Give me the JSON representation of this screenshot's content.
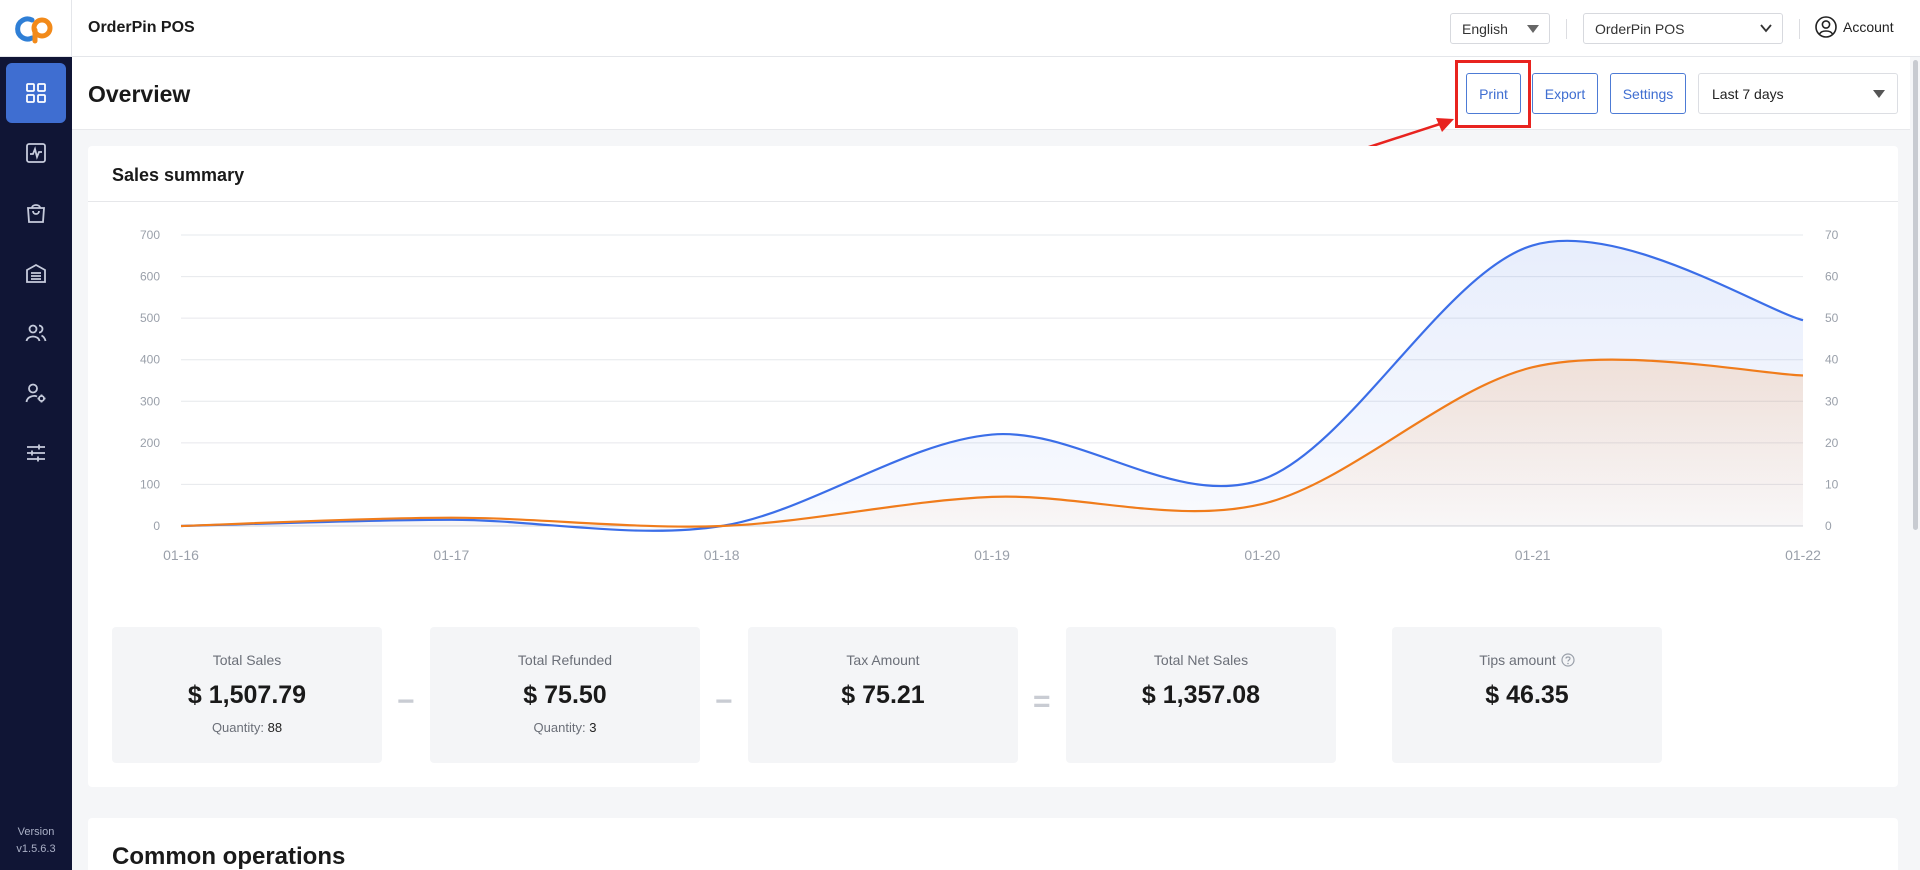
{
  "app": {
    "name": "OrderPin POS"
  },
  "topbar": {
    "language": "English",
    "store": "OrderPin POS",
    "account_label": "Account"
  },
  "sidebar": {
    "items": [
      {
        "icon": "dashboard-icon",
        "active": true
      },
      {
        "icon": "activity-icon",
        "active": false
      },
      {
        "icon": "shopping-bag-icon",
        "active": false
      },
      {
        "icon": "warehouse-icon",
        "active": false
      },
      {
        "icon": "customers-icon",
        "active": false
      },
      {
        "icon": "user-settings-icon",
        "active": false
      },
      {
        "icon": "sliders-icon",
        "active": false
      }
    ],
    "version_label": "Version",
    "version": "v1.5.6.3"
  },
  "header": {
    "title": "Overview",
    "print_label": "Print",
    "export_label": "Export",
    "settings_label": "Settings",
    "date_range": "Last 7 days"
  },
  "sales_summary": {
    "title": "Sales summary",
    "stats": [
      {
        "label": "Total Sales",
        "value": "$ 1,507.79",
        "qty_label": "Quantity:",
        "qty": "88"
      },
      {
        "label": "Total Refunded",
        "value": "$ 75.50",
        "qty_label": "Quantity:",
        "qty": "3"
      },
      {
        "label": "Tax Amount",
        "value": "$ 75.21"
      },
      {
        "label": "Total Net Sales",
        "value": "$ 1,357.08"
      },
      {
        "label": "Tips amount",
        "value": "$ 46.35"
      }
    ],
    "operators": [
      "−",
      "−",
      "="
    ]
  },
  "common_operations": {
    "title": "Common operations"
  },
  "colors": {
    "accent": "#3f6ed1",
    "sidebar": "#101535",
    "series_blue": "#3b6ee8",
    "series_orange": "#f07c1b",
    "annotation": "#e8231f"
  },
  "chart_data": {
    "type": "area",
    "x": [
      "01-16",
      "01-17",
      "01-18",
      "01-19",
      "01-20",
      "01-21",
      "01-22"
    ],
    "left_axis": {
      "ylim": [
        0,
        700
      ],
      "ticks": [
        0,
        100,
        200,
        300,
        400,
        500,
        600,
        700
      ]
    },
    "right_axis": {
      "ylim": [
        0,
        70
      ],
      "ticks": [
        0,
        10,
        20,
        30,
        40,
        50,
        60,
        70
      ]
    },
    "series": [
      {
        "color": "#3b6ee8",
        "axis": "left",
        "values": [
          0,
          15,
          0,
          220,
          112,
          675,
          495
        ]
      },
      {
        "color": "#f07c1b",
        "axis": "right",
        "values": [
          0,
          2,
          0,
          7,
          5.3,
          38.2,
          36.2
        ]
      }
    ],
    "grid": true
  }
}
